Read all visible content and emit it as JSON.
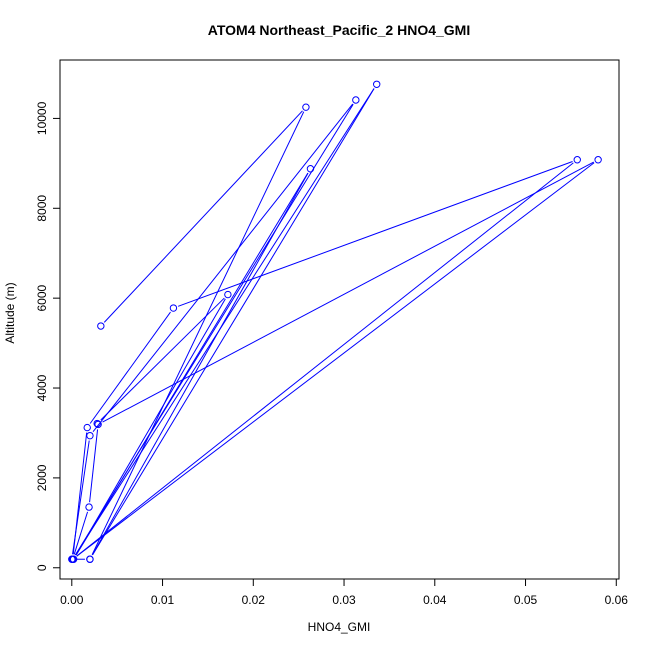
{
  "chart_data": {
    "type": "scatter",
    "title": "ATOM4 Northeast_Pacific_2 HNO4_GMI",
    "xlabel": "HNO4_GMI",
    "ylabel": "Altitude (m)",
    "xlim": [
      -0.0013,
      0.0603
    ],
    "ylim": [
      -250,
      11300
    ],
    "xticks": [
      0.0,
      0.01,
      0.02,
      0.03,
      0.04,
      0.05,
      0.06
    ],
    "xtick_labels": [
      "0.00",
      "0.01",
      "0.02",
      "0.03",
      "0.04",
      "0.05",
      "0.06"
    ],
    "yticks": [
      0,
      2000,
      4000,
      6000,
      8000,
      10000
    ],
    "ytick_labels": [
      "0",
      "2000",
      "4000",
      "6000",
      "8000",
      "10000"
    ],
    "color": "#0000ff",
    "markers": "open-circle",
    "grid": false,
    "series": [
      {
        "x": [
          0.0032,
          0.0258,
          0.002,
          0.0,
          0.002,
          0.0313,
          0.0001,
          0.0019,
          0.0029,
          0.058,
          0.0001,
          0.0017,
          0.0112,
          0.0557,
          0.0001,
          0.0336,
          0.002,
          0.0263,
          0.0002,
          0.0172,
          0.0028
        ],
        "y": [
          5380,
          10250,
          190,
          190,
          2940,
          10410,
          190,
          1350,
          3190,
          9080,
          190,
          3120,
          5780,
          9080,
          190,
          10760,
          190,
          8880,
          190,
          6080,
          3210
        ]
      }
    ]
  }
}
